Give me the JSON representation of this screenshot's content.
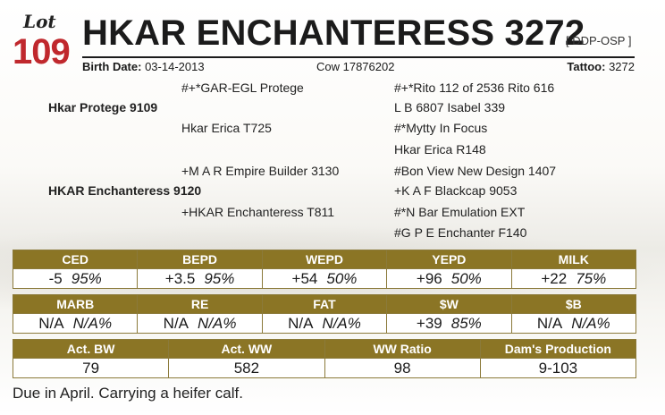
{
  "lot": {
    "label": "Lot",
    "number": "109"
  },
  "animal": {
    "name": "HKAR ENCHANTERESS 3272",
    "registry": "[ DDP-OSP ]",
    "birth_date_label": "Birth Date:",
    "birth_date": "03-14-2013",
    "cow_id": "Cow 17876202",
    "tattoo_label": "Tattoo:",
    "tattoo": "3272"
  },
  "pedigree": {
    "sire": "Hkar Protege 9109",
    "sire_sire": "#+*GAR-EGL Protege",
    "sire_dam": "Hkar Erica T725",
    "dam": "HKAR Enchanteress 9120",
    "dam_sire": "+M A R Empire Builder 3130",
    "dam_dam": "+HKAR Enchanteress T811",
    "ggp": [
      "#+*Rito 112 of 2536 Rito 616",
      "L B 6807 Isabel 339",
      "#*Mytty In Focus",
      "Hkar Erica R148",
      "#Bon View New Design 1407",
      "+K A F Blackcap 9053",
      "#*N Bar Emulation EXT",
      "#G P E Enchanter F140"
    ]
  },
  "epd1": [
    {
      "label": "CED",
      "value": "-5",
      "acc": "95%"
    },
    {
      "label": "BEPD",
      "value": "+3.5",
      "acc": "95%"
    },
    {
      "label": "WEPD",
      "value": "+54",
      "acc": "50%"
    },
    {
      "label": "YEPD",
      "value": "+96",
      "acc": "50%"
    },
    {
      "label": "MILK",
      "value": "+22",
      "acc": "75%"
    }
  ],
  "epd2": [
    {
      "label": "MARB",
      "value": "N/A",
      "acc": "N/A%"
    },
    {
      "label": "RE",
      "value": "N/A",
      "acc": "N/A%"
    },
    {
      "label": "FAT",
      "value": "N/A",
      "acc": "N/A%"
    },
    {
      "label": "$W",
      "value": "+39",
      "acc": "85%"
    },
    {
      "label": "$B",
      "value": "N/A",
      "acc": "N/A%"
    }
  ],
  "actuals": [
    {
      "label": "Act. BW",
      "value": "79"
    },
    {
      "label": "Act. WW",
      "value": "582"
    },
    {
      "label": "WW Ratio",
      "value": "98"
    },
    {
      "label": "Dam's Production",
      "value": "9-103"
    }
  ],
  "note": "Due in April. Carrying a heifer calf."
}
